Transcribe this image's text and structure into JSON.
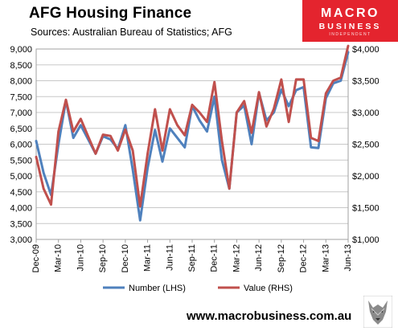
{
  "header": {
    "title": "AFG Housing Finance",
    "subtitle": "Sources: Australian Bureau of Statistics; AFG"
  },
  "logo": {
    "line1": "MACRO",
    "line2": "BUSINESS",
    "line3": "INDEPENDENT"
  },
  "footer": {
    "url": "www.macrobusiness.com.au"
  },
  "colors": {
    "number": "#4f81bd",
    "value": "#c0504d",
    "brand": "#e4242e"
  },
  "chart_data": {
    "type": "line",
    "title": "AFG Housing Finance",
    "x_tick_labels": [
      "Dec-09",
      "Mar-10",
      "Jun-10",
      "Sep-10",
      "Dec-10",
      "Mar-11",
      "Jun-11",
      "Sep-11",
      "Dec-11",
      "Mar-12",
      "Jun-12",
      "Sep-12",
      "Dec-12",
      "Mar-13",
      "Jun-13"
    ],
    "x": [
      "Dec-09",
      "Jan-10",
      "Feb-10",
      "Mar-10",
      "Apr-10",
      "May-10",
      "Jun-10",
      "Jul-10",
      "Aug-10",
      "Sep-10",
      "Oct-10",
      "Nov-10",
      "Dec-10",
      "Jan-11",
      "Feb-11",
      "Mar-11",
      "Apr-11",
      "May-11",
      "Jun-11",
      "Jul-11",
      "Aug-11",
      "Sep-11",
      "Oct-11",
      "Nov-11",
      "Dec-11",
      "Jan-12",
      "Feb-12",
      "Mar-12",
      "Apr-12",
      "May-12",
      "Jun-12",
      "Jul-12",
      "Aug-12",
      "Sep-12",
      "Oct-12",
      "Nov-12",
      "Dec-12",
      "Jan-13",
      "Feb-13",
      "Mar-13",
      "Apr-13",
      "May-13",
      "Jun-13"
    ],
    "y_left": {
      "ylim": [
        3000,
        9000
      ],
      "ticks": [
        "3,000",
        "3,500",
        "4,000",
        "4,500",
        "5,000",
        "5,500",
        "6,000",
        "6,500",
        "7,000",
        "7,500",
        "8,000",
        "8,500",
        "9,000"
      ]
    },
    "y_right": {
      "ylim": [
        1000,
        4000
      ],
      "ticks": [
        "$1,000",
        "$1,500",
        "$2,000",
        "$2,500",
        "$3,000",
        "$3,500",
        "$4,000"
      ]
    },
    "grid": "horizontal",
    "legend_position": "bottom",
    "series": [
      {
        "name": "Number (LHS)",
        "axis": "left",
        "values": [
          6100,
          5100,
          4400,
          6000,
          7380,
          6200,
          6600,
          6150,
          5700,
          6250,
          6150,
          5850,
          6600,
          5200,
          3600,
          5250,
          6450,
          5450,
          6500,
          6200,
          5900,
          7200,
          6750,
          6400,
          7500,
          5500,
          4600,
          7000,
          7220,
          6000,
          7620,
          6750,
          7000,
          7720,
          7200,
          7700,
          7800,
          5900,
          5880,
          7450,
          7920,
          8000,
          8900
        ]
      },
      {
        "name": "Value (RHS)",
        "axis": "right",
        "values": [
          2300,
          1800,
          1550,
          2700,
          3200,
          2700,
          2900,
          2620,
          2350,
          2650,
          2630,
          2400,
          2730,
          2400,
          1520,
          2350,
          3050,
          2400,
          3050,
          2800,
          2640,
          3120,
          3000,
          2850,
          3480,
          2550,
          1800,
          3000,
          3180,
          2680,
          3320,
          2780,
          3060,
          3520,
          2850,
          3520,
          3520,
          2600,
          2550,
          3300,
          3500,
          3550,
          4050
        ]
      }
    ]
  }
}
